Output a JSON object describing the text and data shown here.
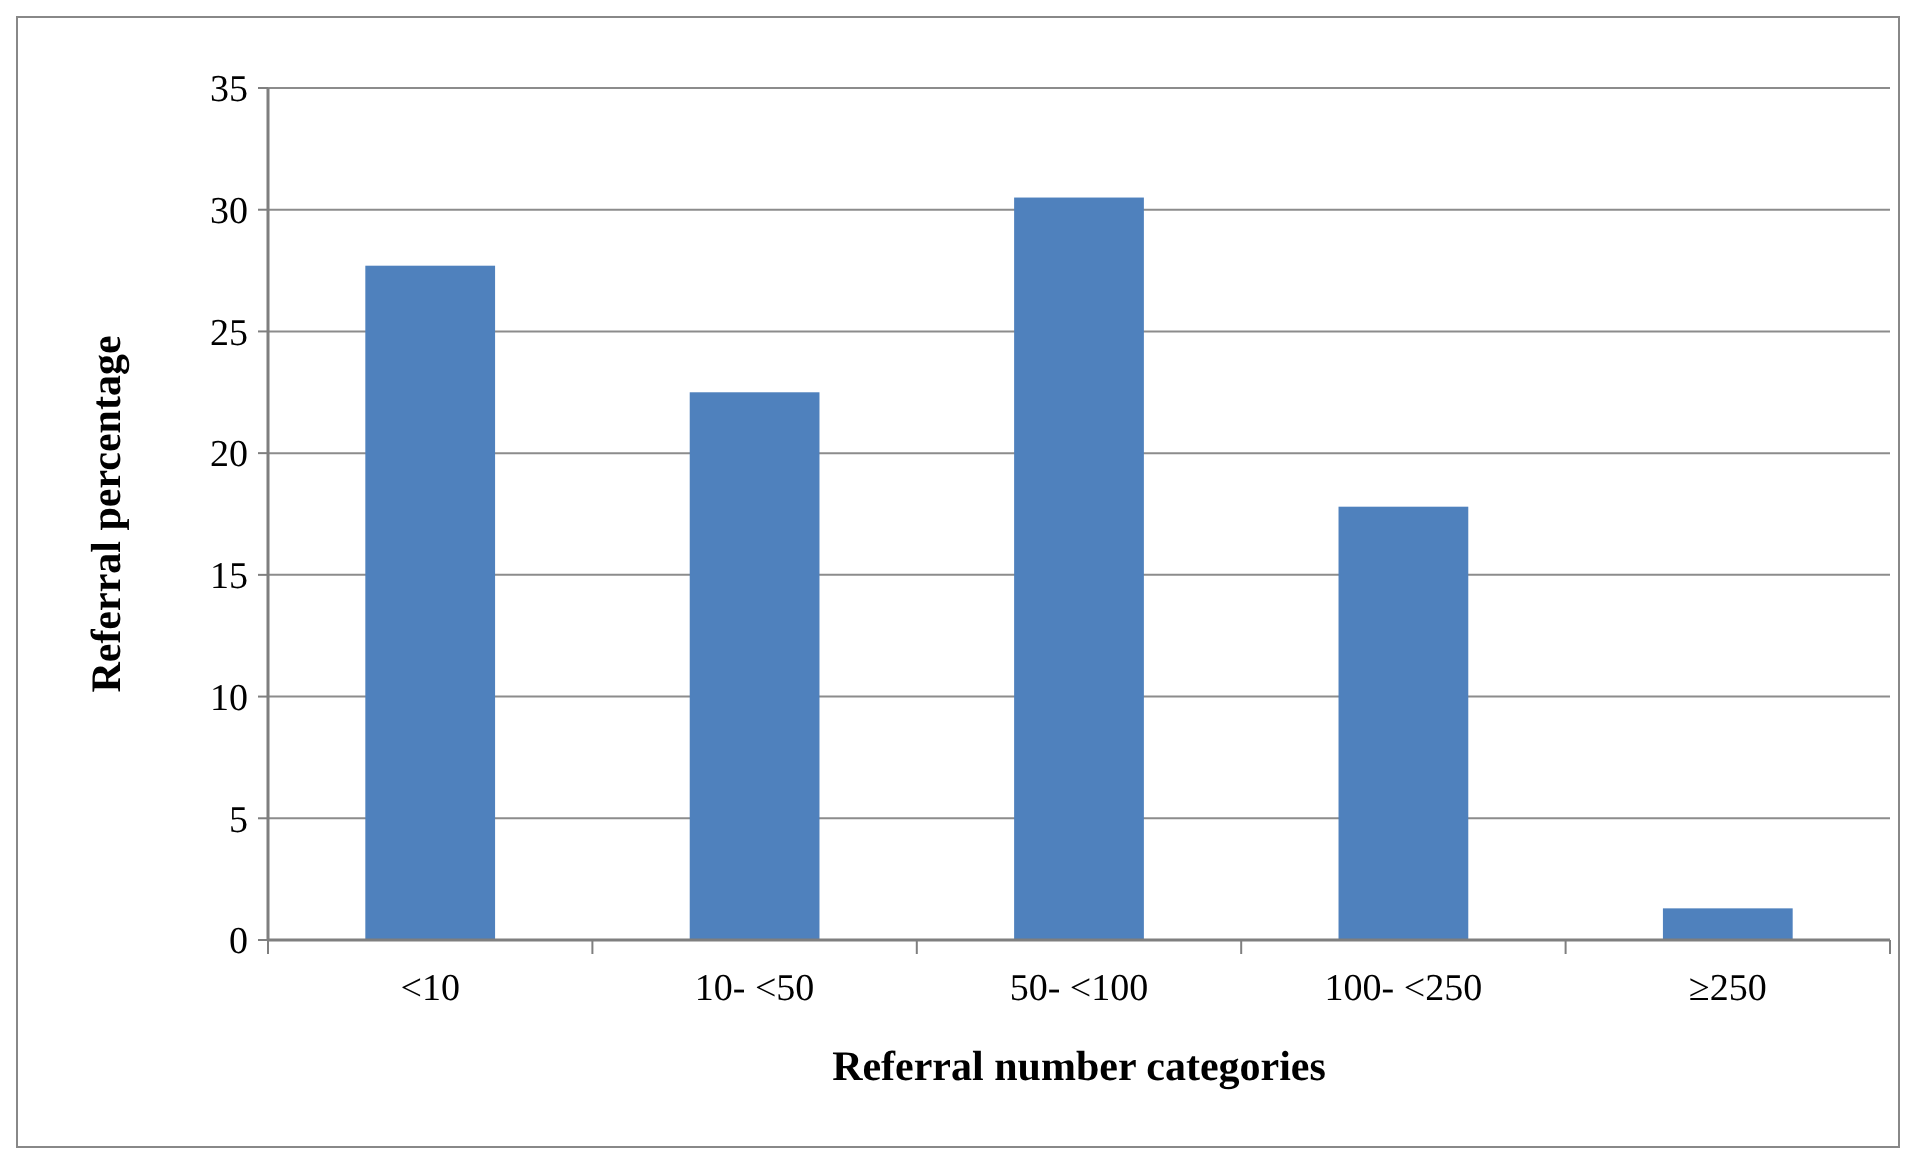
{
  "chart_data": {
    "type": "bar",
    "xlabel": "Referral number  categories",
    "ylabel": "Referral percentage",
    "categories": [
      "<10",
      "10- <50",
      "50- <100",
      "100- <250",
      "≥250"
    ],
    "values": [
      27.7,
      22.5,
      30.5,
      17.8,
      1.3
    ],
    "color": "#4f81bd",
    "ylim": [
      0,
      35
    ],
    "yticks": [
      0,
      5,
      10,
      15,
      20,
      25,
      30,
      35
    ],
    "grid": "y"
  }
}
